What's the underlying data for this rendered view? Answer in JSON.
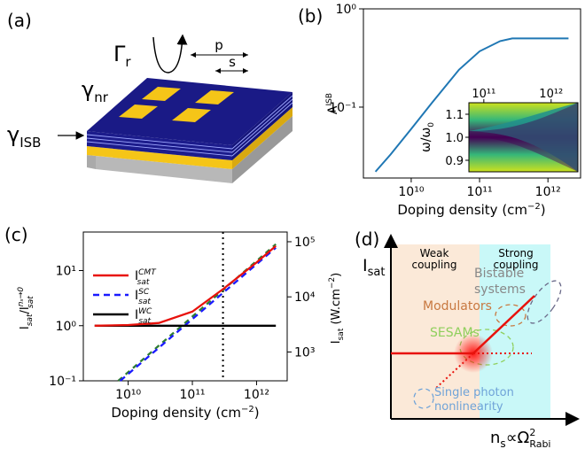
{
  "panel_labels": {
    "a": "(a)",
    "b": "(b)",
    "c": "(c)",
    "d": "(d)"
  },
  "colors": {
    "gold": "#f5c518",
    "navy": "#1c1c8c",
    "gray": "#aaaaaa",
    "blue_line": "#1f77b4",
    "red": "#e8120c",
    "green_dash": "#2e7d32",
    "weak_bg": "#fbe9d8",
    "strong_bg": "#c9f8f8"
  },
  "panel_a": {
    "gamma_r": "Γr",
    "gamma_nr": "γnr",
    "gamma_isb": "γISB",
    "p_label": "p",
    "s_label": "s"
  },
  "chart_data": [
    {
      "id": "b",
      "type": "line",
      "xlabel": "Doping density (cm⁻²)",
      "ylabel": "A^ISB",
      "xscale": "log",
      "yscale": "log",
      "xlim": [
        2000000000.0,
        3000000000000.0
      ],
      "ylim": [
        0.019,
        1.0
      ],
      "x_ticks": [
        {
          "v": 10000000000.0,
          "label": "10¹⁰"
        },
        {
          "v": 100000000000.0,
          "label": "10¹¹"
        },
        {
          "v": 1000000000000.0,
          "label": "10¹²"
        }
      ],
      "y_ticks": [
        {
          "v": 1,
          "label": "10⁰"
        },
        {
          "v": 0.1,
          "label": "10⁻¹"
        }
      ],
      "series": [
        {
          "color": "#1f77b4",
          "points": [
            [
              3000000000.0,
              0.022
            ],
            [
              5000000000.0,
              0.033
            ],
            [
              10000000000.0,
              0.06
            ],
            [
              20000000000.0,
              0.11
            ],
            [
              50000000000.0,
              0.24
            ],
            [
              100000000000.0,
              0.37
            ],
            [
              200000000000.0,
              0.47
            ],
            [
              300000000000.0,
              0.5
            ],
            [
              500000000000.0,
              0.5
            ],
            [
              2000000000000.0,
              0.5
            ]
          ]
        }
      ],
      "inset": {
        "type": "heatmap",
        "ylabel": "ω/ω₀",
        "xscale": "log",
        "xlim": [
          60000000000.0,
          2500000000000.0
        ],
        "ylim": [
          0.85,
          1.15
        ],
        "x_ticks": [
          {
            "v": 100000000000.0,
            "label": "10¹¹"
          },
          {
            "v": 1000000000000.0,
            "label": "10¹²"
          }
        ],
        "y_ticks": [
          {
            "v": 1.1,
            "label": "1.1"
          },
          {
            "v": 1.0,
            "label": "1.0"
          },
          {
            "v": 0.9,
            "label": "0.9"
          }
        ]
      }
    },
    {
      "id": "c",
      "type": "line",
      "xlabel": "Doping density (cm⁻²)",
      "ylabel": "I_sat / I_sat^(ns→0)",
      "y2label": "I_sat (W.cm⁻²)",
      "xscale": "log",
      "yscale": "log",
      "xlim": [
        2000000000.0,
        3000000000000.0
      ],
      "ylim": [
        0.1,
        50
      ],
      "y2lim": [
        300,
        150000
      ],
      "x_ticks": [
        {
          "v": 10000000000.0,
          "label": "10¹⁰"
        },
        {
          "v": 100000000000.0,
          "label": "10¹¹"
        },
        {
          "v": 1000000000000.0,
          "label": "10¹²"
        }
      ],
      "y_ticks": [
        {
          "v": 0.1,
          "label": "10⁻¹"
        },
        {
          "v": 1,
          "label": "10⁰"
        },
        {
          "v": 10,
          "label": "10¹"
        }
      ],
      "y2_ticks": [
        {
          "v": 1000,
          "label": "10³"
        },
        {
          "v": 10000,
          "label": "10⁴"
        },
        {
          "v": 100000,
          "label": "10⁵"
        }
      ],
      "vline_x": 300000000000.0,
      "series": [
        {
          "name": "I_sat^CMT",
          "color": "#e8120c",
          "dash": "",
          "points": [
            [
              3000000000.0,
              1.0
            ],
            [
              10000000000.0,
              1.03
            ],
            [
              30000000000.0,
              1.12
            ],
            [
              100000000000.0,
              1.8
            ],
            [
              300000000000.0,
              4.6
            ],
            [
              1000000000000.0,
              14
            ],
            [
              2000000000000.0,
              28
            ]
          ]
        },
        {
          "name": "I_sat^SC",
          "color": "#1a1aff",
          "dash": "7,5",
          "points": [
            [
              7500000000.0,
              0.1
            ],
            [
              2000000000000.0,
              26
            ]
          ]
        },
        {
          "name": "I_sat^WC",
          "color": "#000000",
          "dash": "",
          "points": [
            [
              3000000000.0,
              1.0
            ],
            [
              2000000000000.0,
              1.0
            ]
          ]
        },
        {
          "color": "#2e7d32",
          "dash": "6,5",
          "points": [
            [
              7000000000.0,
              0.1
            ],
            [
              2000000000000.0,
              30
            ]
          ]
        }
      ]
    }
  ],
  "panel_d": {
    "y_axis_label": "Isat",
    "x_axis_label": "ns∝Ω²Rabi",
    "weak_region": "Weak coupling",
    "strong_region": "Strong coupling",
    "labels": {
      "bistable": "Bistable systems",
      "modulators": "Modulators",
      "sesams": "SESAMs",
      "single_photon": "Single photon nonlinearity"
    }
  }
}
